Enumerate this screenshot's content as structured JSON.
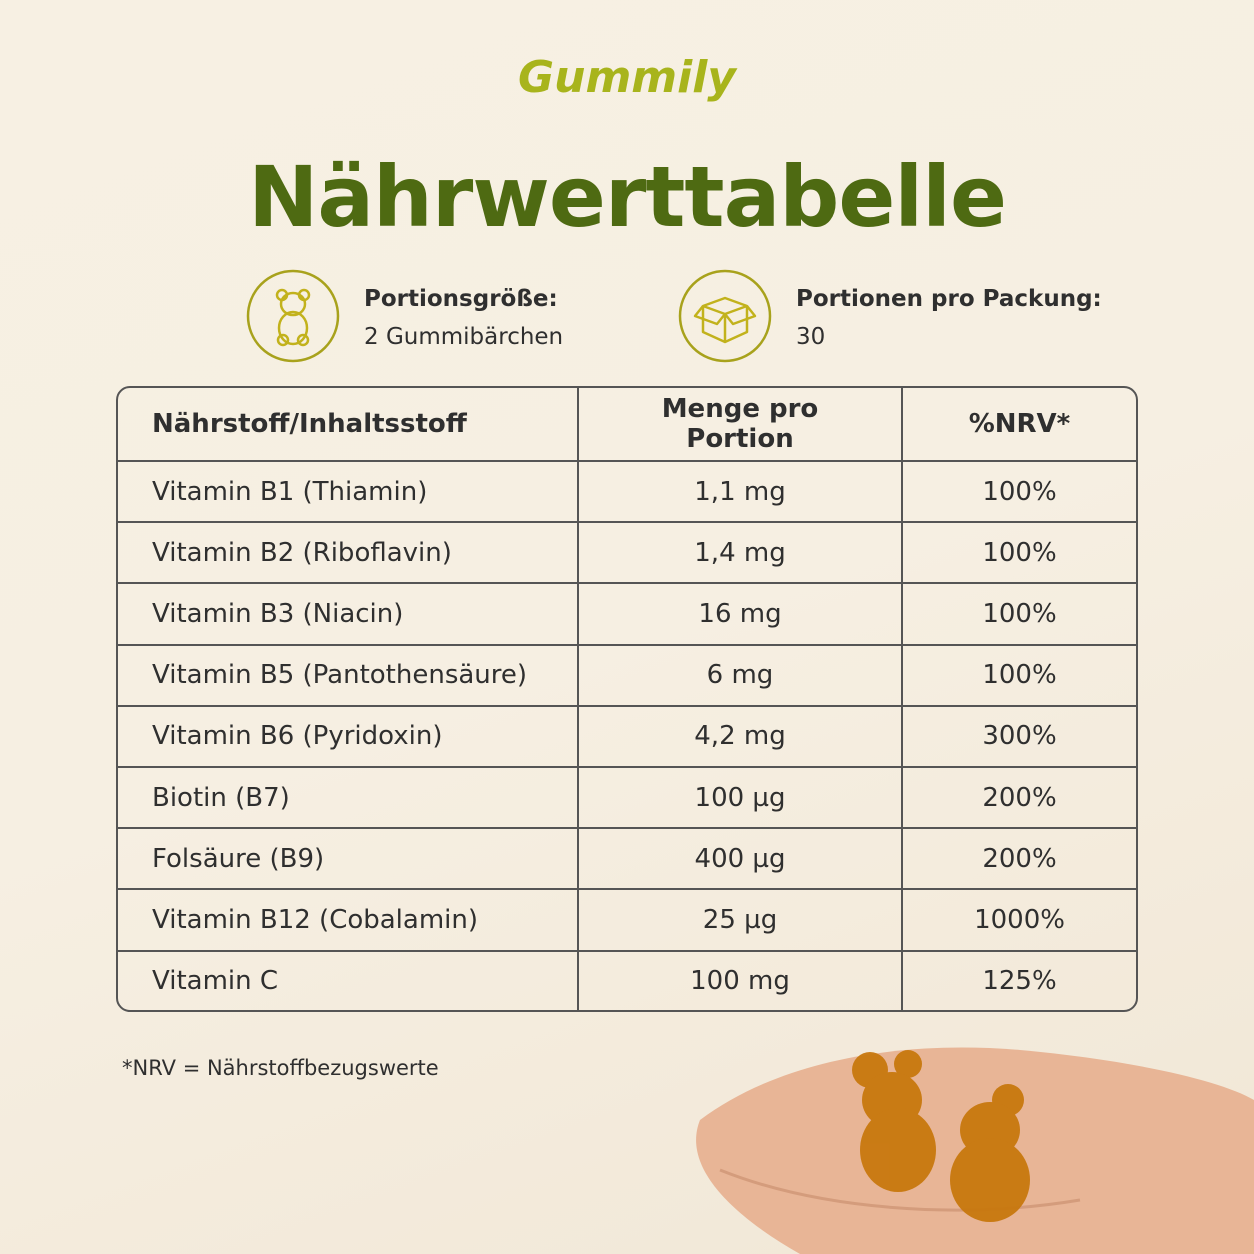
{
  "header": {
    "brand": "Gummily",
    "title": "Nährwerttabelle"
  },
  "info": [
    {
      "label": "Portionsgröße:",
      "value": "2 Gummibärchen"
    },
    {
      "label": "Portionen pro Packung:",
      "value": "30"
    }
  ],
  "table": {
    "columns": [
      "Nährstoff/Inhaltsstoff",
      "Menge pro Portion",
      "%NRV*"
    ],
    "rows": [
      [
        "Vitamin B1 (Thiamin)",
        "1,1 mg",
        "100%"
      ],
      [
        "Vitamin B2 (Riboflavin)",
        "1,4 mg",
        "100%"
      ],
      [
        "Vitamin B3 (Niacin)",
        "16 mg",
        "100%"
      ],
      [
        "Vitamin B5 (Pantothensäure)",
        "6 mg",
        "100%"
      ],
      [
        "Vitamin B6 (Pyridoxin)",
        "4,2 mg",
        "300%"
      ],
      [
        "Biotin (B7)",
        "100 µg",
        "200%"
      ],
      [
        "Folsäure (B9)",
        "400 µg",
        "200%"
      ],
      [
        "Vitamin B12 (Cobalamin)",
        "25 µg",
        "1000%"
      ],
      [
        "Vitamin C",
        "100 mg",
        "125%"
      ]
    ]
  },
  "footnote": "*NRV = Nährstoffbezugswerte"
}
